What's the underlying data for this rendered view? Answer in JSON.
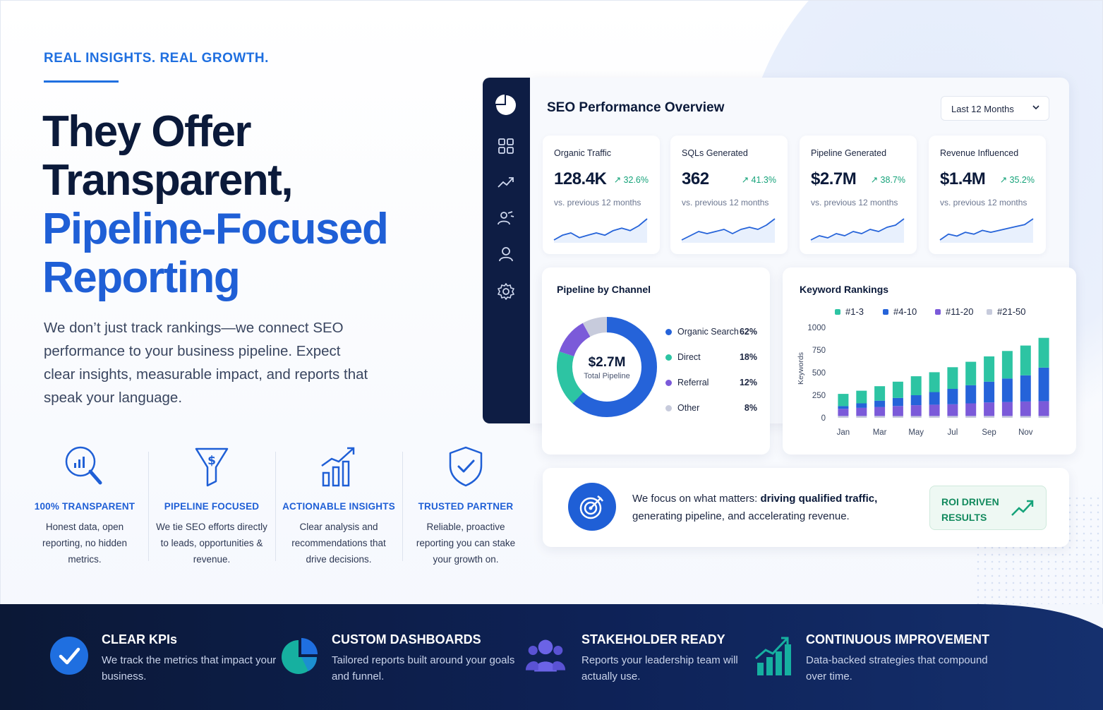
{
  "hero": {
    "eyebrow": "REAL INSIGHTS. REAL GROWTH.",
    "headline_line1": "They Offer",
    "headline_line2": "Transparent,",
    "headline_line3": "Pipeline-Focused",
    "headline_line4": "Reporting",
    "lead": "We don’t just track rankings—we connect SEO performance to your business pipeline. Expect clear insights, measurable impact, and reports that speak your language."
  },
  "features": [
    {
      "icon": "magnifier-chart-icon",
      "title": "100% TRANSPARENT",
      "desc": "Honest data, open reporting, no hidden metrics."
    },
    {
      "icon": "dollar-funnel-icon",
      "title": "PIPELINE FOCUSED",
      "desc": "We tie SEO efforts directly to leads, opportunities & revenue."
    },
    {
      "icon": "growth-chart-icon",
      "title": "ACTIONABLE INSIGHTS",
      "desc": "Clear analysis and recommendations that drive decisions."
    },
    {
      "icon": "shield-check-icon",
      "title": "TRUSTED PARTNER",
      "desc": "Reliable, proactive reporting you can stake your growth on."
    }
  ],
  "dashboard": {
    "sidebar_icons": [
      "pie-chart-logo-icon",
      "grid-icon",
      "trend-icon",
      "users-icon",
      "user-icon",
      "gear-icon"
    ],
    "title": "SEO Performance Overview",
    "range": "Last 12 Months",
    "kpis": [
      {
        "label": "Organic Traffic",
        "value": "128.4K",
        "delta": "↗ 32.6%",
        "sub": "vs. previous 12 months"
      },
      {
        "label": "SQLs Generated",
        "value": "362",
        "delta": "↗ 41.3%",
        "sub": "vs. previous 12 months"
      },
      {
        "label": "Pipeline Generated",
        "value": "$2.7M",
        "delta": "↗ 38.7%",
        "sub": "vs. previous 12 months"
      },
      {
        "label": "Revenue Influenced",
        "value": "$1.4M",
        "delta": "↗ 35.2%",
        "sub": "vs. previous 12 months"
      }
    ],
    "pipeline": {
      "title": "Pipeline by Channel",
      "center_value": "$2.7M",
      "center_label": "Total Pipeline"
    },
    "keywords": {
      "title": "Keyword Rankings",
      "legend": [
        "#1-3",
        "#4-10",
        "#11-20",
        "#21-50"
      ]
    },
    "roi": {
      "text_plain1": "We focus on what matters: ",
      "text_bold": "driving qualified traffic,",
      "text_plain2": " generating pipeline, and accelerating revenue.",
      "badge_line1": "ROI DRIVEN",
      "badge_line2": "RESULTS"
    }
  },
  "footer": [
    {
      "icon": "check-circle-icon",
      "title": "CLEAR KPIs",
      "desc": "We track the metrics that impact your business."
    },
    {
      "icon": "pie-chart-icon",
      "title": "CUSTOM DASHBOARDS",
      "desc": "Tailored reports built around your goals and funnel."
    },
    {
      "icon": "team-icon",
      "title": "STAKEHOLDER READY",
      "desc": "Reports your leadership team will actually use."
    },
    {
      "icon": "bar-growth-icon",
      "title": "CONTINUOUS IMPROVEMENT",
      "desc": "Data-backed strategies that compound over time."
    }
  ],
  "colors": {
    "brand_blue": "#1f5fd6",
    "navy": "#0b1a3a",
    "green": "#16a37a",
    "teal": "#2dc4a3",
    "purple": "#7b5ad9",
    "grey": "#c7cbdc"
  },
  "chart_data": [
    {
      "type": "line",
      "title": "Organic Traffic",
      "x": [
        1,
        2,
        3,
        4,
        5,
        6,
        7,
        8,
        9,
        10,
        11,
        12
      ],
      "series": [
        {
          "values": [
            3,
            5,
            6,
            4,
            5,
            6,
            5,
            7,
            8,
            7,
            9,
            12
          ]
        }
      ]
    },
    {
      "type": "line",
      "title": "SQLs Generated",
      "x": [
        1,
        2,
        3,
        4,
        5,
        6,
        7,
        8,
        9,
        10,
        11,
        12
      ],
      "series": [
        {
          "values": [
            2,
            4,
            6,
            5,
            6,
            7,
            5,
            7,
            8,
            7,
            9,
            12
          ]
        }
      ]
    },
    {
      "type": "line",
      "title": "Pipeline Generated",
      "x": [
        1,
        2,
        3,
        4,
        5,
        6,
        7,
        8,
        9,
        10,
        11,
        12
      ],
      "series": [
        {
          "values": [
            3,
            5,
            4,
            6,
            5,
            7,
            6,
            8,
            7,
            9,
            10,
            13
          ]
        }
      ]
    },
    {
      "type": "line",
      "title": "Revenue Influenced",
      "x": [
        1,
        2,
        3,
        4,
        5,
        6,
        7,
        8,
        9,
        10,
        11,
        12
      ],
      "series": [
        {
          "values": [
            2,
            5,
            4,
            6,
            5,
            7,
            6,
            7,
            8,
            9,
            10,
            13
          ]
        }
      ]
    },
    {
      "type": "pie",
      "title": "Pipeline by Channel",
      "categories": [
        "Organic Search",
        "Direct",
        "Referral",
        "Other"
      ],
      "values": [
        62,
        18,
        12,
        8
      ],
      "labels": [
        "62%",
        "18%",
        "12%",
        "8%"
      ],
      "colors": [
        "#2563d9",
        "#2dc4a3",
        "#7b5ad9",
        "#c7cbdc"
      ]
    },
    {
      "type": "bar",
      "title": "Keyword Rankings",
      "ylabel": "Keywords",
      "ylim": [
        0,
        1000
      ],
      "yticks": [
        0,
        250,
        500,
        750,
        1000
      ],
      "categories": [
        "Jan",
        "Feb",
        "Mar",
        "Apr",
        "May",
        "Jun",
        "Jul",
        "Aug",
        "Sep",
        "Oct",
        "Nov",
        "Dec"
      ],
      "xtick_labels": [
        "Jan",
        "",
        "Mar",
        "",
        "May",
        "",
        "Jul",
        "",
        "Sep",
        "",
        "Nov",
        ""
      ],
      "stacked": true,
      "series": [
        {
          "name": "#21-50",
          "color": "#c7cbdc",
          "values": [
            20,
            20,
            20,
            20,
            20,
            20,
            20,
            20,
            20,
            20,
            20,
            20
          ]
        },
        {
          "name": "#11-20",
          "color": "#7b5ad9",
          "values": [
            80,
            90,
            100,
            110,
            120,
            125,
            130,
            140,
            150,
            155,
            160,
            165
          ]
        },
        {
          "name": "#4-10",
          "color": "#2563d9",
          "values": [
            30,
            50,
            70,
            90,
            110,
            140,
            170,
            200,
            230,
            260,
            290,
            370
          ]
        },
        {
          "name": "#1-3",
          "color": "#2dc4a3",
          "values": [
            135,
            140,
            160,
            180,
            210,
            220,
            240,
            260,
            280,
            305,
            330,
            330
          ]
        }
      ]
    }
  ]
}
